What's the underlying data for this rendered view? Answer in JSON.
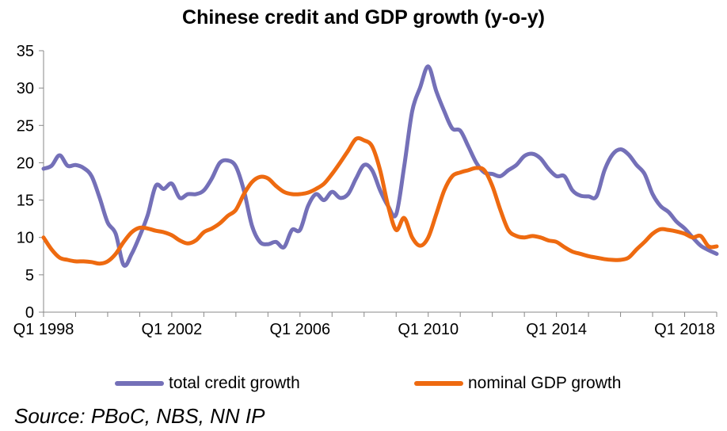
{
  "chart_data": {
    "type": "line",
    "title": "Chinese credit and GDP growth (y-o-y)",
    "xlabel": "",
    "ylabel": "",
    "ylim": [
      0,
      35
    ],
    "yticks": [
      "0",
      "5",
      "10",
      "15",
      "20",
      "25",
      "30",
      "35"
    ],
    "xlim": [
      "1998Q1",
      "2019Q1"
    ],
    "xtick_labels": [
      "Q1 1998",
      "Q1 2002",
      "Q1 2006",
      "Q1 2010",
      "Q1 2014",
      "Q1 2018"
    ],
    "grid": false,
    "legend_position": "bottom",
    "x": [
      "1998Q1",
      "1998Q2",
      "1998Q3",
      "1998Q4",
      "1999Q1",
      "1999Q2",
      "1999Q3",
      "1999Q4",
      "2000Q1",
      "2000Q2",
      "2000Q3",
      "2000Q4",
      "2001Q1",
      "2001Q2",
      "2001Q3",
      "2001Q4",
      "2002Q1",
      "2002Q2",
      "2002Q3",
      "2002Q4",
      "2003Q1",
      "2003Q2",
      "2003Q3",
      "2003Q4",
      "2004Q1",
      "2004Q2",
      "2004Q3",
      "2004Q4",
      "2005Q1",
      "2005Q2",
      "2005Q3",
      "2005Q4",
      "2006Q1",
      "2006Q2",
      "2006Q3",
      "2006Q4",
      "2007Q1",
      "2007Q2",
      "2007Q3",
      "2007Q4",
      "2008Q1",
      "2008Q2",
      "2008Q3",
      "2008Q4",
      "2009Q1",
      "2009Q2",
      "2009Q3",
      "2009Q4",
      "2010Q1",
      "2010Q2",
      "2010Q3",
      "2010Q4",
      "2011Q1",
      "2011Q2",
      "2011Q3",
      "2011Q4",
      "2012Q1",
      "2012Q2",
      "2012Q3",
      "2012Q4",
      "2013Q1",
      "2013Q2",
      "2013Q3",
      "2013Q4",
      "2014Q1",
      "2014Q2",
      "2014Q3",
      "2014Q4",
      "2015Q1",
      "2015Q2",
      "2015Q3",
      "2015Q4",
      "2016Q1",
      "2016Q2",
      "2016Q3",
      "2016Q4",
      "2017Q1",
      "2017Q2",
      "2017Q3",
      "2017Q4",
      "2018Q1",
      "2018Q2",
      "2018Q3",
      "2018Q4",
      "2019Q1"
    ],
    "series": [
      {
        "name": "total credit growth",
        "color": "#7470b8",
        "values": [
          19.2,
          19.6,
          21.0,
          19.6,
          19.7,
          19.3,
          18.2,
          15.3,
          12.0,
          10.5,
          6.3,
          7.8,
          10.2,
          13.0,
          16.9,
          16.5,
          17.2,
          15.3,
          15.8,
          15.8,
          16.3,
          17.9,
          20.0,
          20.3,
          19.5,
          16.3,
          11.6,
          9.4,
          9.1,
          9.4,
          8.7,
          11.0,
          11.0,
          14.2,
          15.8,
          15.0,
          16.1,
          15.3,
          15.8,
          17.9,
          19.7,
          19.0,
          16.3,
          14.2,
          13.1,
          19.5,
          26.9,
          30.1,
          32.9,
          29.6,
          26.9,
          24.6,
          24.3,
          22.2,
          20.0,
          18.7,
          18.5,
          18.2,
          19.0,
          19.7,
          20.9,
          21.2,
          20.6,
          19.2,
          18.2,
          18.2,
          16.3,
          15.6,
          15.5,
          15.5,
          19.0,
          21.1,
          21.8,
          21.1,
          19.7,
          18.5,
          15.8,
          14.2,
          13.4,
          12.1,
          11.2,
          10.0,
          8.9,
          8.3,
          7.8
        ]
      },
      {
        "name": "nominal GDP growth",
        "color": "#ee6a10",
        "values": [
          10.0,
          8.4,
          7.3,
          7.0,
          6.8,
          6.8,
          6.7,
          6.5,
          6.8,
          7.8,
          9.4,
          10.7,
          11.3,
          11.2,
          10.9,
          10.7,
          10.3,
          9.6,
          9.2,
          9.6,
          10.7,
          11.2,
          11.9,
          12.9,
          13.7,
          15.8,
          17.4,
          18.1,
          17.9,
          16.9,
          16.1,
          15.8,
          15.8,
          16.0,
          16.5,
          17.2,
          18.5,
          20.0,
          21.6,
          23.2,
          23.0,
          22.2,
          19.0,
          14.2,
          11.0,
          12.6,
          10.0,
          8.9,
          10.0,
          13.1,
          16.3,
          18.2,
          18.7,
          19.0,
          19.3,
          19.0,
          16.9,
          13.7,
          11.0,
          10.2,
          10.0,
          10.2,
          10.0,
          9.6,
          9.4,
          8.7,
          8.1,
          7.8,
          7.5,
          7.3,
          7.1,
          7.0,
          7.0,
          7.3,
          8.4,
          9.4,
          10.5,
          11.1,
          11.0,
          10.8,
          10.5,
          10.0,
          10.2,
          8.8,
          8.8
        ]
      }
    ]
  },
  "source": "Source: PBoC, NBS, NN IP"
}
